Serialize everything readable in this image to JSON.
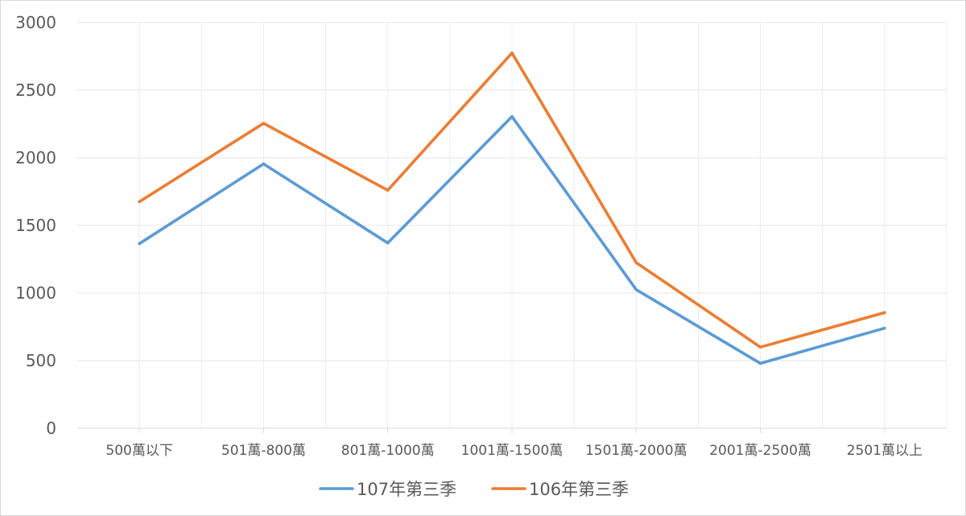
{
  "chart_data": {
    "type": "line",
    "categories": [
      "500萬以下",
      "501萬-800萬",
      "801萬-1000萬",
      "1001萬-1500萬",
      "1501萬-2000萬",
      "2001萬-2500萬",
      "2501萬以上"
    ],
    "ylim": [
      0,
      3000
    ],
    "yticks": [
      0,
      500,
      1000,
      1500,
      2000,
      2500,
      3000
    ],
    "grid": true,
    "legend_position": "bottom",
    "series": [
      {
        "name": "107年第三季",
        "color": "#5B9BD5",
        "values": [
          1365,
          1955,
          1370,
          2305,
          1025,
          480,
          740
        ]
      },
      {
        "name": "106年第三季",
        "color": "#ED7D31",
        "values": [
          1675,
          2255,
          1760,
          2775,
          1225,
          600,
          855
        ]
      }
    ]
  }
}
